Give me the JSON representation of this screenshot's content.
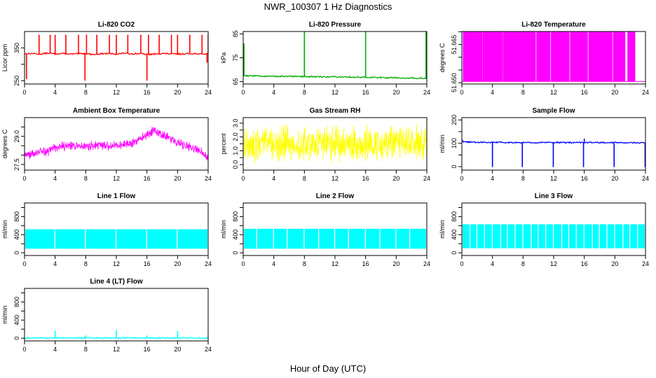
{
  "figure": {
    "title": "NWR_100307  1 Hz Diagnostics",
    "xlabel": "Hour of Day (UTC)"
  },
  "chart_data": [
    {
      "type": "line",
      "title": "Li-820 CO2",
      "ylabel": "Licor ppm",
      "color": "#ff0000",
      "xlim": [
        0,
        24
      ],
      "ylim": [
        240,
        400
      ],
      "x_ticks": [
        0,
        4,
        8,
        12,
        16,
        20,
        24
      ],
      "y_ticks": [
        250,
        300,
        350
      ],
      "y_tick_labels": [
        "250",
        "",
        "350"
      ],
      "x": [
        0,
        1,
        2,
        3,
        4,
        5,
        6,
        7,
        8,
        9,
        10,
        11,
        12,
        13,
        14,
        15,
        16,
        17,
        18,
        19,
        20,
        21,
        22,
        23,
        24
      ],
      "y": [
        332,
        333,
        331,
        334,
        332,
        333,
        331,
        332,
        333,
        330,
        332,
        333,
        331,
        334,
        332,
        333,
        330,
        331,
        333,
        332,
        331,
        332,
        333,
        331,
        332
      ],
      "spikes": [
        [
          0.25,
          255
        ],
        [
          1.9,
          390
        ],
        [
          3.35,
          390
        ],
        [
          4.0,
          390
        ],
        [
          5.4,
          390
        ],
        [
          7.05,
          390
        ],
        [
          7.9,
          250
        ],
        [
          8.1,
          390
        ],
        [
          9.45,
          390
        ],
        [
          11.1,
          390
        ],
        [
          12.0,
          390
        ],
        [
          13.5,
          390
        ],
        [
          15.2,
          390
        ],
        [
          16.0,
          250
        ],
        [
          16.2,
          390
        ],
        [
          17.6,
          390
        ],
        [
          19.2,
          390
        ],
        [
          20.0,
          390
        ],
        [
          21.6,
          390
        ],
        [
          23.2,
          390
        ],
        [
          23.85,
          305
        ],
        [
          24.0,
          390
        ]
      ]
    },
    {
      "type": "line",
      "title": "Li-820 Pressure",
      "ylabel": "kPa",
      "color": "#00aa00",
      "xlim": [
        0,
        24
      ],
      "ylim": [
        64,
        86
      ],
      "x_ticks": [
        0,
        4,
        8,
        12,
        16,
        20,
        24
      ],
      "y_ticks": [
        65,
        75,
        85
      ],
      "y_tick_labels": [
        "65",
        "75",
        "85"
      ],
      "x": [
        0,
        0.2,
        4,
        8,
        12,
        16,
        20,
        24
      ],
      "y": [
        67.8,
        67.5,
        67.2,
        67.1,
        67.0,
        66.8,
        66.6,
        66.4
      ],
      "spikes": [
        [
          0.1,
          81
        ],
        [
          8.0,
          86
        ],
        [
          16.0,
          86
        ],
        [
          23.9,
          86
        ]
      ]
    },
    {
      "type": "line",
      "title": "Li-820 Temperature",
      "ylabel": "degrees C",
      "color": "#ff00ff",
      "xlim": [
        0,
        24
      ],
      "ylim": [
        51.6495,
        51.6701
      ],
      "x_ticks": [
        0,
        4,
        8,
        12,
        16,
        20,
        24
      ],
      "y_ticks": [
        51.65,
        51.655,
        51.66,
        51.665,
        51.67
      ],
      "y_tick_labels": [
        "51.650",
        "",
        "",
        "51.665",
        ""
      ],
      "bands": [
        [
          0.2,
          2.6
        ],
        [
          2.75,
          5.3
        ],
        [
          5.45,
          9.6
        ],
        [
          9.8,
          11.5
        ],
        [
          11.7,
          14.0
        ],
        [
          14.2,
          16.4
        ],
        [
          16.6,
          19.6
        ],
        [
          19.8,
          21.3
        ],
        [
          21.7,
          22.6
        ]
      ],
      "low_value": 51.6505,
      "high_value": 51.67
    },
    {
      "type": "line",
      "title": "Ambient Box Temperature",
      "ylabel": "degrees C",
      "color": "#ff00ff",
      "xlim": [
        0,
        24
      ],
      "ylim": [
        27.2,
        30.0
      ],
      "x_ticks": [
        0,
        4,
        8,
        12,
        16,
        20,
        24
      ],
      "y_ticks": [
        27.5,
        28.0,
        28.5,
        29.0,
        29.5
      ],
      "y_tick_labels": [
        "27.5",
        "",
        "",
        "29.0",
        ""
      ],
      "x": [
        0,
        1,
        2,
        3,
        4,
        5,
        6,
        7,
        8,
        9,
        10,
        11,
        12,
        13,
        14,
        15,
        16,
        17,
        18,
        19,
        20,
        21,
        22,
        23,
        24
      ],
      "y": [
        28.1,
        28.05,
        28.2,
        28.2,
        28.4,
        28.45,
        28.5,
        28.5,
        28.45,
        28.5,
        28.55,
        28.5,
        28.5,
        28.55,
        28.6,
        28.8,
        29.1,
        29.3,
        29.1,
        28.9,
        28.7,
        28.5,
        28.4,
        28.2,
        27.8
      ],
      "noise": 0.3
    },
    {
      "type": "line",
      "title": "Gas Stream RH",
      "ylabel": "percent",
      "color": "#ffff00",
      "xlim": [
        0,
        24
      ],
      "ylim": [
        -0.4,
        3.4
      ],
      "x_ticks": [
        0,
        4,
        8,
        12,
        16,
        20,
        24
      ],
      "y_ticks": [
        0.0,
        0.5,
        1.0,
        1.5,
        2.0,
        2.5,
        3.0
      ],
      "y_tick_labels": [
        "0.0",
        "",
        "1.0",
        "",
        "2.0",
        "",
        "3.0"
      ],
      "x": [
        0,
        4,
        8,
        12,
        16,
        20,
        24
      ],
      "y": [
        1.5,
        1.5,
        1.5,
        1.5,
        1.5,
        1.5,
        1.5
      ],
      "noise": 1.5
    },
    {
      "type": "line",
      "title": "Sample Flow",
      "ylabel": "ml/min",
      "color": "#0000ff",
      "xlim": [
        0,
        24
      ],
      "ylim": [
        -15,
        210
      ],
      "x_ticks": [
        0,
        4,
        8,
        12,
        16,
        20,
        24
      ],
      "y_ticks": [
        0,
        50,
        100,
        150,
        200
      ],
      "y_tick_labels": [
        "0",
        "",
        "100",
        "",
        "200"
      ],
      "x": [
        0,
        0.15,
        4,
        8,
        12,
        16,
        20,
        24
      ],
      "y": [
        118,
        105,
        104,
        103,
        103,
        103,
        103,
        102
      ],
      "spikes": [
        [
          4.0,
          -2
        ],
        [
          7.9,
          -2
        ],
        [
          11.95,
          -2
        ],
        [
          15.9,
          -2
        ],
        [
          16.0,
          120
        ],
        [
          19.9,
          -2
        ],
        [
          23.95,
          -2
        ]
      ]
    },
    {
      "type": "line",
      "title": "Line 1 Flow",
      "ylabel": "ml/min",
      "color": "#00ffff",
      "xlim": [
        0,
        24
      ],
      "ylim": [
        -60,
        1100
      ],
      "x_ticks": [
        0,
        4,
        8,
        12,
        16,
        20,
        24
      ],
      "y_ticks": [
        0,
        200,
        400,
        600,
        800,
        1000
      ],
      "y_tick_labels": [
        "0",
        "",
        "400",
        "",
        "800",
        ""
      ],
      "band_low": 90,
      "band_high": 520,
      "gaps": [
        3.9,
        7.9,
        11.9,
        15.9,
        19.9
      ]
    },
    {
      "type": "line",
      "title": "Line 2 Flow",
      "ylabel": "ml/min",
      "color": "#00ffff",
      "xlim": [
        0,
        24
      ],
      "ylim": [
        -60,
        1100
      ],
      "x_ticks": [
        0,
        4,
        8,
        12,
        16,
        20,
        24
      ],
      "y_ticks": [
        0,
        200,
        400,
        600,
        800,
        1000
      ],
      "y_tick_labels": [
        "0",
        "",
        "400",
        "",
        "800",
        ""
      ],
      "band_low": 90,
      "band_high": 530,
      "gaps": [
        1.7,
        3.9,
        5.7,
        7.9,
        9.8,
        11.9,
        13.7,
        15.9,
        17.8,
        19.9,
        21.7
      ]
    },
    {
      "type": "line",
      "title": "Line 3 Flow",
      "ylabel": "ml/min",
      "color": "#00ffff",
      "xlim": [
        0,
        24
      ],
      "ylim": [
        -60,
        1100
      ],
      "x_ticks": [
        0,
        4,
        8,
        12,
        16,
        20,
        24
      ],
      "y_ticks": [
        0,
        200,
        400,
        600,
        800,
        1000
      ],
      "y_tick_labels": [
        "0",
        "",
        "400",
        "",
        "800",
        ""
      ],
      "band_low": 100,
      "band_high": 630,
      "gaps": [
        1.0,
        1.9,
        2.9,
        3.9,
        5.0,
        5.9,
        6.9,
        7.9,
        9.0,
        9.9,
        10.9,
        11.9,
        13.0,
        13.9,
        14.9,
        15.9,
        17.0,
        17.9,
        18.9,
        19.9,
        21.0,
        21.9,
        22.9
      ]
    },
    {
      "type": "line",
      "title": "Line 4 (LT) Flow",
      "ylabel": "ml/min",
      "color": "#00ffff",
      "xlim": [
        0,
        24
      ],
      "ylim": [
        -60,
        1100
      ],
      "x_ticks": [
        0,
        4,
        8,
        12,
        16,
        20,
        24
      ],
      "y_ticks": [
        0,
        200,
        400,
        600,
        800,
        1000
      ],
      "y_tick_labels": [
        "0",
        "",
        "400",
        "",
        "800",
        ""
      ],
      "x": [
        0,
        24
      ],
      "y": [
        5,
        5
      ],
      "spikes": [
        [
          4.0,
          160
        ],
        [
          8.0,
          60
        ],
        [
          12.0,
          170
        ],
        [
          16.0,
          60
        ],
        [
          20.0,
          160
        ],
        [
          24.0,
          70
        ]
      ]
    }
  ]
}
